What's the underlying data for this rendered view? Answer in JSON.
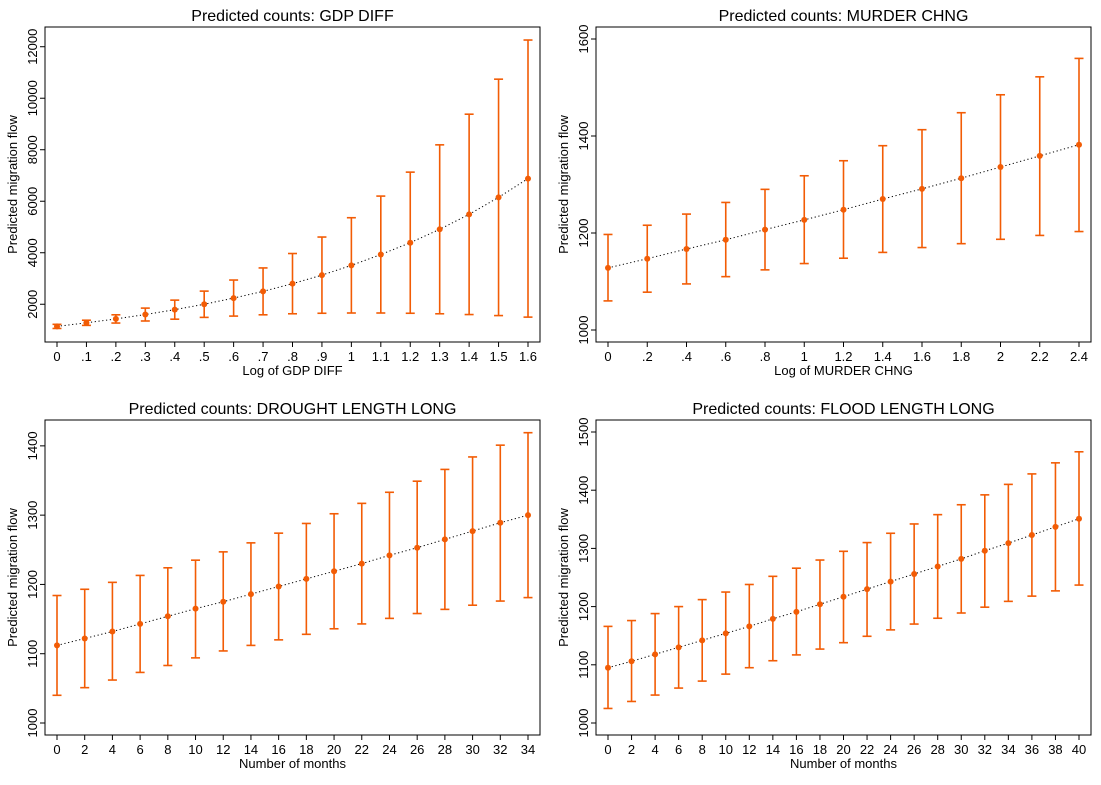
{
  "colors": {
    "marker": "#f25c05",
    "line": "#000000",
    "axis": "#000000"
  },
  "chart_data": [
    {
      "type": "scatter",
      "title": "Predicted counts: GDP DIFF",
      "xlabel": "Log of GDP DIFF",
      "ylabel": "Predicted migration flow",
      "x": [
        0,
        0.1,
        0.2,
        0.3,
        0.4,
        0.5,
        0.6,
        0.7,
        0.8,
        0.9,
        1.0,
        1.1,
        1.2,
        1.3,
        1.4,
        1.5,
        1.6
      ],
      "y": [
        1140,
        1280,
        1430,
        1600,
        1790,
        2000,
        2240,
        2500,
        2800,
        3130,
        3510,
        3930,
        4390,
        4910,
        5490,
        6150,
        6880
      ],
      "ci_low": [
        1060,
        1180,
        1270,
        1350,
        1420,
        1490,
        1540,
        1590,
        1630,
        1650,
        1660,
        1660,
        1650,
        1630,
        1600,
        1560,
        1500
      ],
      "ci_high": [
        1220,
        1380,
        1590,
        1850,
        2160,
        2510,
        2940,
        3410,
        3970,
        4610,
        5360,
        6200,
        7130,
        8190,
        9380,
        10740,
        12260
      ],
      "xticks": [
        0,
        0.1,
        0.2,
        0.3,
        0.4,
        0.5,
        0.6,
        0.7,
        0.8,
        0.9,
        1.0,
        1.1,
        1.2,
        1.3,
        1.4,
        1.5,
        1.6
      ],
      "xtick_labels": [
        "0",
        ".1",
        ".2",
        ".3",
        ".4",
        ".5",
        ".6",
        ".7",
        ".8",
        ".9",
        "1",
        "1.1",
        "1.2",
        "1.3",
        "1.4",
        "1.5",
        "1.6"
      ],
      "yticks": [
        2000,
        4000,
        6000,
        8000,
        10000,
        12000
      ],
      "ytick_labels": [
        "2000",
        "4000",
        "6000",
        "8000",
        "10000",
        "12000"
      ],
      "xlim": [
        0,
        1.6
      ],
      "ylim": [
        1000,
        12300
      ],
      "grid": false
    },
    {
      "type": "scatter",
      "title": "Predicted counts: MURDER CHNG",
      "xlabel": "Log of MURDER CHNG",
      "ylabel": "Predicted migration flow",
      "x": [
        0,
        0.2,
        0.4,
        0.6,
        0.8,
        1.0,
        1.2,
        1.4,
        1.6,
        1.8,
        2.0,
        2.2,
        2.4
      ],
      "y": [
        1128,
        1147,
        1167,
        1186,
        1207,
        1227,
        1248,
        1270,
        1291,
        1313,
        1336,
        1359,
        1382
      ],
      "ci_low": [
        1060,
        1078,
        1095,
        1110,
        1124,
        1137,
        1148,
        1160,
        1170,
        1178,
        1187,
        1195,
        1203
      ],
      "ci_high": [
        1197,
        1216,
        1239,
        1263,
        1290,
        1318,
        1349,
        1380,
        1413,
        1448,
        1485,
        1522,
        1560
      ],
      "xticks": [
        0,
        0.2,
        0.4,
        0.6,
        0.8,
        1.0,
        1.2,
        1.4,
        1.6,
        1.8,
        2.0,
        2.2,
        2.4
      ],
      "xtick_labels": [
        "0",
        ".2",
        ".4",
        ".6",
        ".8",
        "1",
        "1.2",
        "1.4",
        "1.6",
        "1.8",
        "2",
        "2.2",
        "2.4"
      ],
      "yticks": [
        1000,
        1200,
        1400,
        1600
      ],
      "ytick_labels": [
        "1000",
        "1200",
        "1400",
        "1600"
      ],
      "xlim": [
        0,
        2.4
      ],
      "ylim": [
        1000,
        1600
      ],
      "grid": false
    },
    {
      "type": "scatter",
      "title": "Predicted counts: DROUGHT LENGTH LONG",
      "xlabel": "Number of months",
      "ylabel": "Predicted migration flow",
      "x": [
        0,
        2,
        4,
        6,
        8,
        10,
        12,
        14,
        16,
        18,
        20,
        22,
        24,
        26,
        28,
        30,
        32,
        34
      ],
      "y": [
        1112,
        1122,
        1132,
        1143,
        1154,
        1165,
        1175,
        1186,
        1197,
        1208,
        1219,
        1230,
        1242,
        1253,
        1265,
        1277,
        1289,
        1300
      ],
      "ci_low": [
        1040,
        1051,
        1062,
        1073,
        1083,
        1094,
        1104,
        1112,
        1120,
        1128,
        1136,
        1143,
        1151,
        1158,
        1164,
        1170,
        1176,
        1181
      ],
      "ci_high": [
        1184,
        1193,
        1203,
        1213,
        1224,
        1235,
        1247,
        1260,
        1274,
        1288,
        1302,
        1317,
        1333,
        1349,
        1366,
        1384,
        1401,
        1419
      ],
      "xticks": [
        0,
        2,
        4,
        6,
        8,
        10,
        12,
        14,
        16,
        18,
        20,
        22,
        24,
        26,
        28,
        30,
        32,
        34
      ],
      "xtick_labels": [
        "0",
        "2",
        "4",
        "6",
        "8",
        "10",
        "12",
        "14",
        "16",
        "18",
        "20",
        "22",
        "24",
        "26",
        "28",
        "30",
        "32",
        "34"
      ],
      "yticks": [
        1000,
        1100,
        1200,
        1300,
        1400
      ],
      "ytick_labels": [
        "1000",
        "1100",
        "1200",
        "1300",
        "1400"
      ],
      "xlim": [
        0,
        34
      ],
      "ylim": [
        1000,
        1420
      ],
      "grid": false
    },
    {
      "type": "scatter",
      "title": "Predicted counts: FLOOD LENGTH LONG",
      "xlabel": "Number of months",
      "ylabel": "Predicted migration flow",
      "x": [
        0,
        2,
        4,
        6,
        8,
        10,
        12,
        14,
        16,
        18,
        20,
        22,
        24,
        26,
        28,
        30,
        32,
        34,
        36,
        38,
        40
      ],
      "y": [
        1095,
        1106,
        1118,
        1130,
        1142,
        1154,
        1166,
        1179,
        1191,
        1204,
        1217,
        1230,
        1243,
        1256,
        1269,
        1282,
        1296,
        1309,
        1323,
        1337,
        1351
      ],
      "ci_low": [
        1025,
        1037,
        1048,
        1060,
        1072,
        1084,
        1095,
        1107,
        1117,
        1127,
        1138,
        1149,
        1160,
        1170,
        1180,
        1189,
        1199,
        1209,
        1218,
        1227,
        1237
      ],
      "ci_high": [
        1166,
        1176,
        1188,
        1200,
        1212,
        1225,
        1238,
        1252,
        1266,
        1280,
        1295,
        1310,
        1326,
        1342,
        1358,
        1375,
        1392,
        1410,
        1428,
        1447,
        1466
      ],
      "xticks": [
        0,
        2,
        4,
        6,
        8,
        10,
        12,
        14,
        16,
        18,
        20,
        22,
        24,
        26,
        28,
        30,
        32,
        34,
        36,
        38,
        40
      ],
      "xtick_labels": [
        "0",
        "2",
        "4",
        "6",
        "8",
        "10",
        "12",
        "14",
        "16",
        "18",
        "20",
        "22",
        "24",
        "26",
        "28",
        "30",
        "32",
        "34",
        "36",
        "38",
        "40"
      ],
      "yticks": [
        1000,
        1100,
        1200,
        1300,
        1400,
        1500
      ],
      "ytick_labels": [
        "1000",
        "1100",
        "1200",
        "1300",
        "1400",
        "1500"
      ],
      "xlim": [
        0,
        40
      ],
      "ylim": [
        1000,
        1500
      ],
      "grid": false
    }
  ]
}
